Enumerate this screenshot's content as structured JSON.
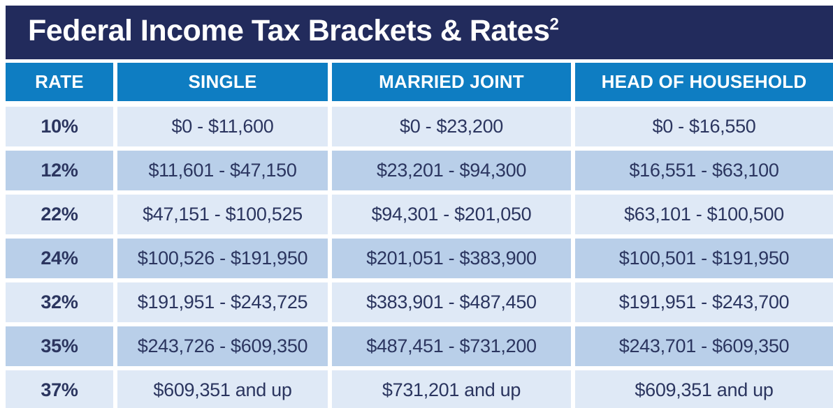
{
  "chart_data": {
    "type": "table",
    "title": "Federal Income Tax Brackets & Rates",
    "title_superscript": "2",
    "columns": [
      "RATE",
      "SINGLE",
      "MARRIED JOINT",
      "HEAD OF HOUSEHOLD"
    ],
    "rows": [
      [
        "10%",
        "$0 - $11,600",
        "$0 - $23,200",
        "$0 - $16,550"
      ],
      [
        "12%",
        "$11,601 - $47,150",
        "$23,201 - $94,300",
        "$16,551 - $63,100"
      ],
      [
        "22%",
        "$47,151 - $100,525",
        "$94,301 - $201,050",
        "$63,101 - $100,500"
      ],
      [
        "24%",
        "$100,526 - $191,950",
        "$201,051 - $383,900",
        "$100,501 - $191,950"
      ],
      [
        "32%",
        "$191,951 - $243,725",
        "$383,901 - $487,450",
        "$191,951 - $243,700"
      ],
      [
        "35%",
        "$243,726 - $609,350",
        "$487,451 - $731,200",
        "$243,701 - $609,350"
      ],
      [
        "37%",
        "$609,351 and up",
        "$731,201 and up",
        "$609,351 and up"
      ]
    ],
    "layout": {
      "row_shading_order": [
        "light",
        "dark",
        "light",
        "dark",
        "light",
        "dark",
        "light"
      ],
      "grid": "off",
      "legend": "none"
    }
  },
  "colors": {
    "title_bar": "#222b5c",
    "column_header": "#0e7dc2",
    "row_light": "#dfe9f6",
    "row_dark": "#b9cfe9",
    "cell_text": "#2b355f",
    "header_text": "#ffffff"
  }
}
